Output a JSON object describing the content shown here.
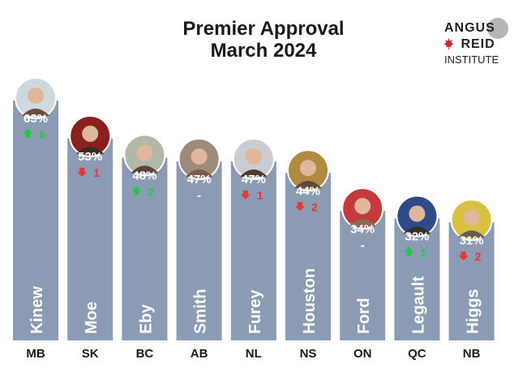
{
  "title": [
    "Premier Approval",
    "March 2024"
  ],
  "logo": {
    "line1": "ANGUS",
    "line2": "REID",
    "line3": "INSTITUTE",
    "icon": "maple-leaf-icon",
    "color": "#c62828"
  },
  "colors": {
    "bar": "#8a9bb3",
    "bar_text": "#ffffff",
    "up": "#27c93f",
    "down": "#e53935",
    "axis_text": "#1a1a1a"
  },
  "chart_data": {
    "type": "bar",
    "title": "Premier Approval March 2024",
    "categories": [
      "MB",
      "SK",
      "BC",
      "AB",
      "NL",
      "NS",
      "ON",
      "QC",
      "NB"
    ],
    "values": [
      63,
      53,
      48,
      47,
      47,
      44,
      34,
      32,
      31
    ],
    "value_labels": [
      "63%",
      "53%",
      "48%",
      "47%",
      "47%",
      "44%",
      "34%",
      "32%",
      "31%"
    ],
    "names": [
      "Kinew",
      "Moe",
      "Eby",
      "Smith",
      "Furey",
      "Houston",
      "Ford",
      "Legault",
      "Higgs"
    ],
    "change": [
      {
        "dir": "up",
        "value": "6"
      },
      {
        "dir": "down",
        "value": "1"
      },
      {
        "dir": "up",
        "value": "2"
      },
      {
        "dir": "none",
        "value": "-"
      },
      {
        "dir": "down",
        "value": "1"
      },
      {
        "dir": "down",
        "value": "2"
      },
      {
        "dir": "none",
        "value": "-"
      },
      {
        "dir": "up",
        "value": "1"
      },
      {
        "dir": "down",
        "value": "2"
      }
    ],
    "photo_icon": "premier-photo-icon",
    "ylim": [
      0,
      63
    ],
    "grid": false,
    "legend": "none"
  }
}
